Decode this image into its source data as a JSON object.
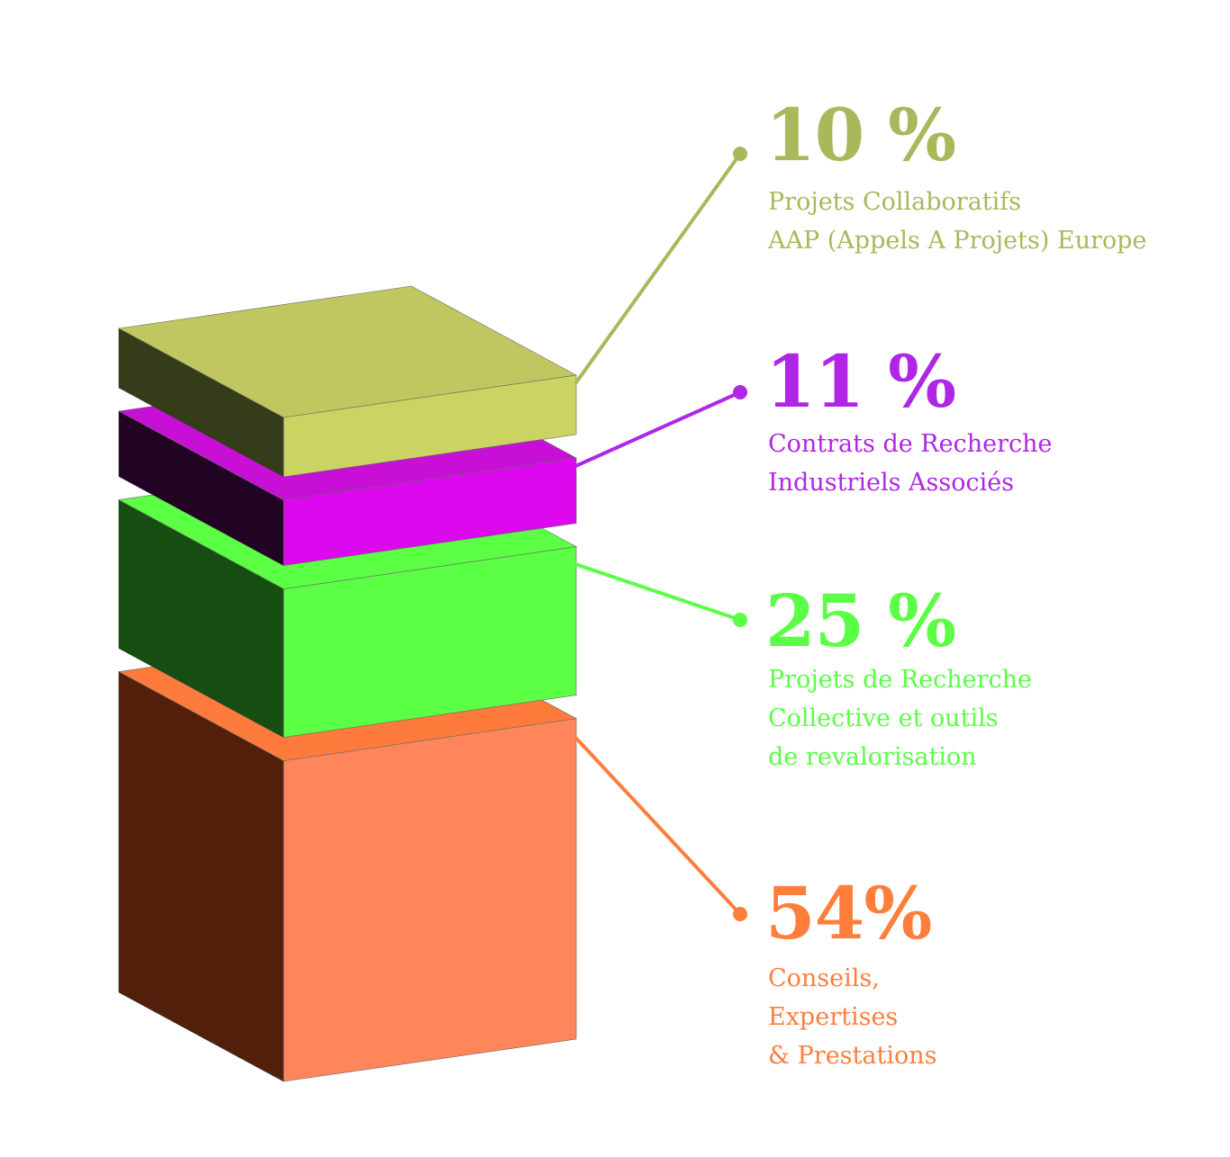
{
  "chart_data": {
    "type": "bar",
    "style": "stacked-3d-blocks",
    "unit": "%",
    "segments": [
      {
        "key": "europe",
        "value": 10,
        "label": "10 %",
        "description": [
          "Projets Collaboratifs",
          "AAP (Appels A Projets) Europe"
        ],
        "color": "#a9b85a",
        "top_color": "#c0c660",
        "front_color": "#cbd462",
        "side_color": "#343c1a"
      },
      {
        "key": "industriels",
        "value": 11,
        "label": "11 %",
        "description": [
          "Contrats de Recherche",
          "Industriels Associés"
        ],
        "color": "#b026e6",
        "top_color": "#c80fd6",
        "front_color": "#dc08ee",
        "side_color": "#210323"
      },
      {
        "key": "recherche",
        "value": 25,
        "label": "25 %",
        "description": [
          "Projets de Recherche",
          "Collective et outils",
          "de revalorisation"
        ],
        "color": "#5aff46",
        "top_color": "#5bff44",
        "front_color": "#5bff44",
        "side_color": "#164e12"
      },
      {
        "key": "conseils",
        "value": 54,
        "label": "54%",
        "description": [
          "Conseils,",
          "Expertises",
          "& Prestations"
        ],
        "color": "#ff7e3c",
        "top_color": "#ff7b3c",
        "front_color": "#ff855a",
        "side_color": "#521f0a"
      }
    ]
  }
}
